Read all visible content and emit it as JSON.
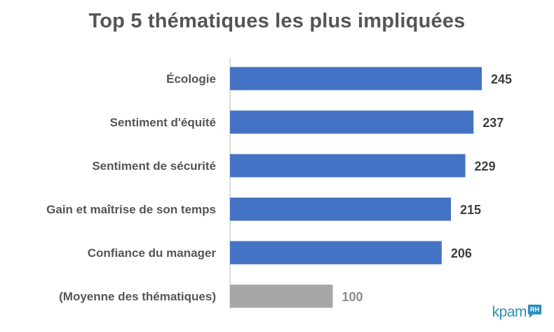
{
  "chart_data": {
    "type": "bar",
    "orientation": "horizontal",
    "title": "Top 5 thématiques les plus impliquées",
    "categories": [
      "Écologie",
      "Sentiment d'équité",
      "Sentiment de sécurité",
      "Gain et maîtrise de son temps",
      "Confiance du manager",
      "(Moyenne des thématiques)"
    ],
    "values": [
      245,
      237,
      229,
      215,
      206,
      100
    ],
    "value_labels": [
      "245",
      "237",
      "229",
      "215",
      "206",
      "100"
    ],
    "bar_colors": [
      "#4472c4",
      "#4472c4",
      "#4472c4",
      "#4472c4",
      "#4472c4",
      "#a6a6a6"
    ],
    "value_label_colors": [
      "#3f3f3f",
      "#3f3f3f",
      "#3f3f3f",
      "#3f3f3f",
      "#3f3f3f",
      "#8c8c8c"
    ],
    "xlim": [
      0,
      245
    ],
    "grid": false,
    "legend": "none"
  },
  "logo": {
    "text": "kpam",
    "badge": "RH"
  }
}
